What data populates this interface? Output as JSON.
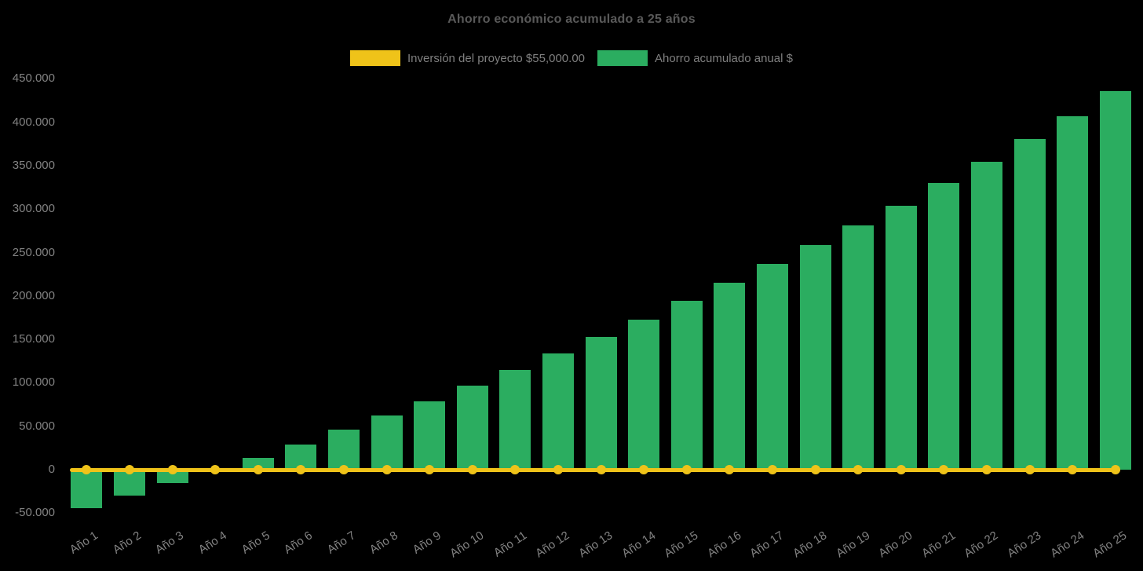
{
  "chart_data": {
    "type": "bar",
    "title": "Ahorro económico acumulado a 25 años",
    "categories": [
      "Año 1",
      "Año 2",
      "Año 3",
      "Año 4",
      "Año 5",
      "Año 6",
      "Año 7",
      "Año 8",
      "Año 9",
      "Año 10",
      "Año 11",
      "Año 12",
      "Año 13",
      "Año 14",
      "Año 15",
      "Año 16",
      "Año 17",
      "Año 18",
      "Año 19",
      "Año 20",
      "Año 21",
      "Año 22",
      "Año 23",
      "Año 24",
      "Año 25"
    ],
    "series": [
      {
        "name": "Inversión del proyecto $55,000.00",
        "type": "line",
        "color": "#EFC319",
        "values": [
          0,
          0,
          0,
          0,
          0,
          0,
          0,
          0,
          0,
          0,
          0,
          0,
          0,
          0,
          0,
          0,
          0,
          0,
          0,
          0,
          0,
          0,
          0,
          0,
          0
        ],
        "note": "flat line with circular point markers drawn along y = 0"
      },
      {
        "name": "Ahorro acumulado anual $",
        "type": "bar",
        "color": "#2BAD60",
        "values": [
          -44000,
          -30000,
          -15000,
          0,
          14000,
          29000,
          46000,
          62000,
          79000,
          97000,
          115000,
          134000,
          153000,
          173000,
          194000,
          215000,
          237000,
          259000,
          281000,
          304000,
          330000,
          354000,
          381000,
          407000,
          436000
        ]
      }
    ],
    "ylim": [
      -50000,
      450000
    ],
    "ytick_step": 50000,
    "ytick_labels": [
      "450.000",
      "400.000",
      "350.000",
      "300.000",
      "250.000",
      "200.000",
      "150.000",
      "100.000",
      "50.000",
      "0",
      "-50.000"
    ],
    "grid": false,
    "legend_position": "top",
    "background_color": "#000000",
    "text_colors": {
      "title": "#595959",
      "axis_ticks": "#828282",
      "legend": "#7f7f7f"
    }
  }
}
